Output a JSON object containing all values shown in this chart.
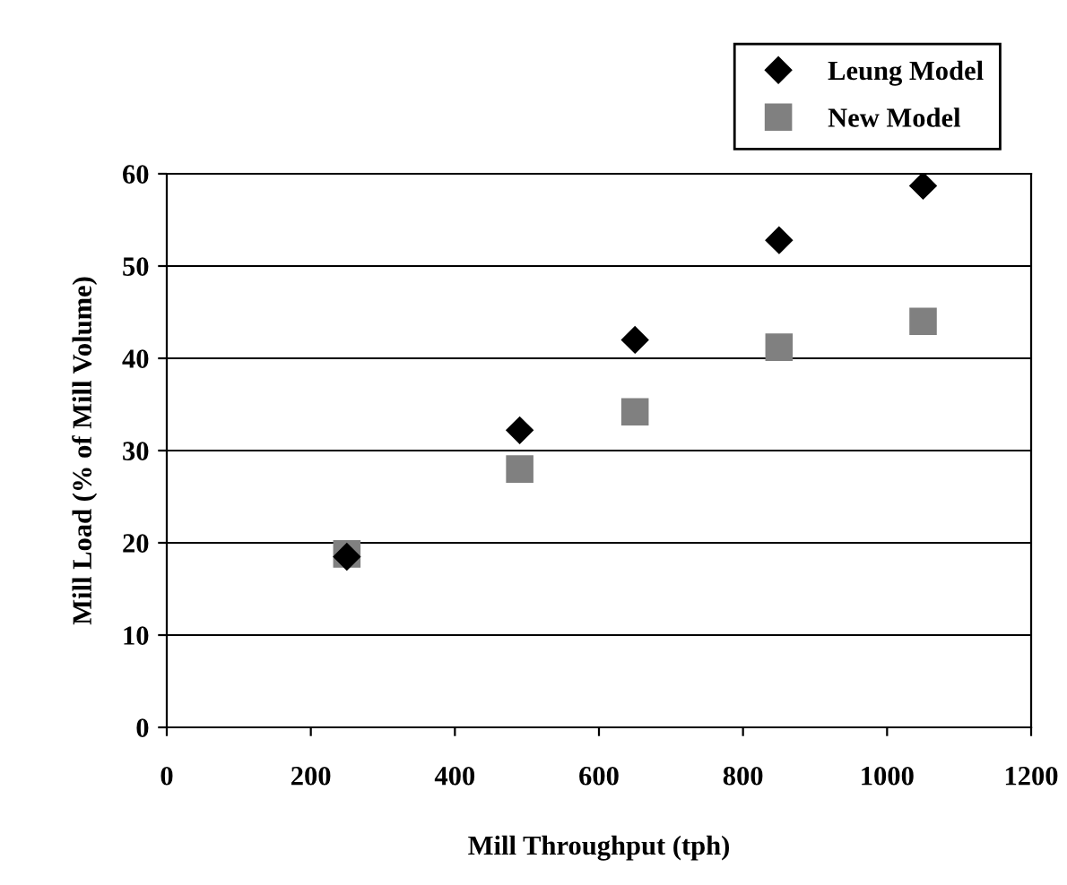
{
  "chart_data": {
    "type": "scatter",
    "xlabel": "Mill Throughput (tph)",
    "ylabel": "Mill Load (% of Mill Volume)",
    "series": [
      {
        "name": "Leung Model",
        "color": "#000000",
        "marker": "diamond",
        "x": [
          250,
          490,
          650,
          850,
          1050
        ],
        "values": [
          18.5,
          32.2,
          42,
          52.8,
          58.7
        ]
      },
      {
        "name": "New Model",
        "color": "#808080",
        "marker": "square",
        "x": [
          250,
          490,
          650,
          850,
          1050
        ],
        "values": [
          18.8,
          28,
          34.2,
          41.2,
          44
        ]
      }
    ],
    "xlim": [
      0,
      1200
    ],
    "xticks": [
      0,
      200,
      400,
      600,
      800,
      1000,
      1200
    ],
    "ylim": [
      0,
      60
    ],
    "yticks": [
      0,
      10,
      20,
      30,
      40,
      50,
      60
    ],
    "grid": "y",
    "legend": "top right"
  }
}
